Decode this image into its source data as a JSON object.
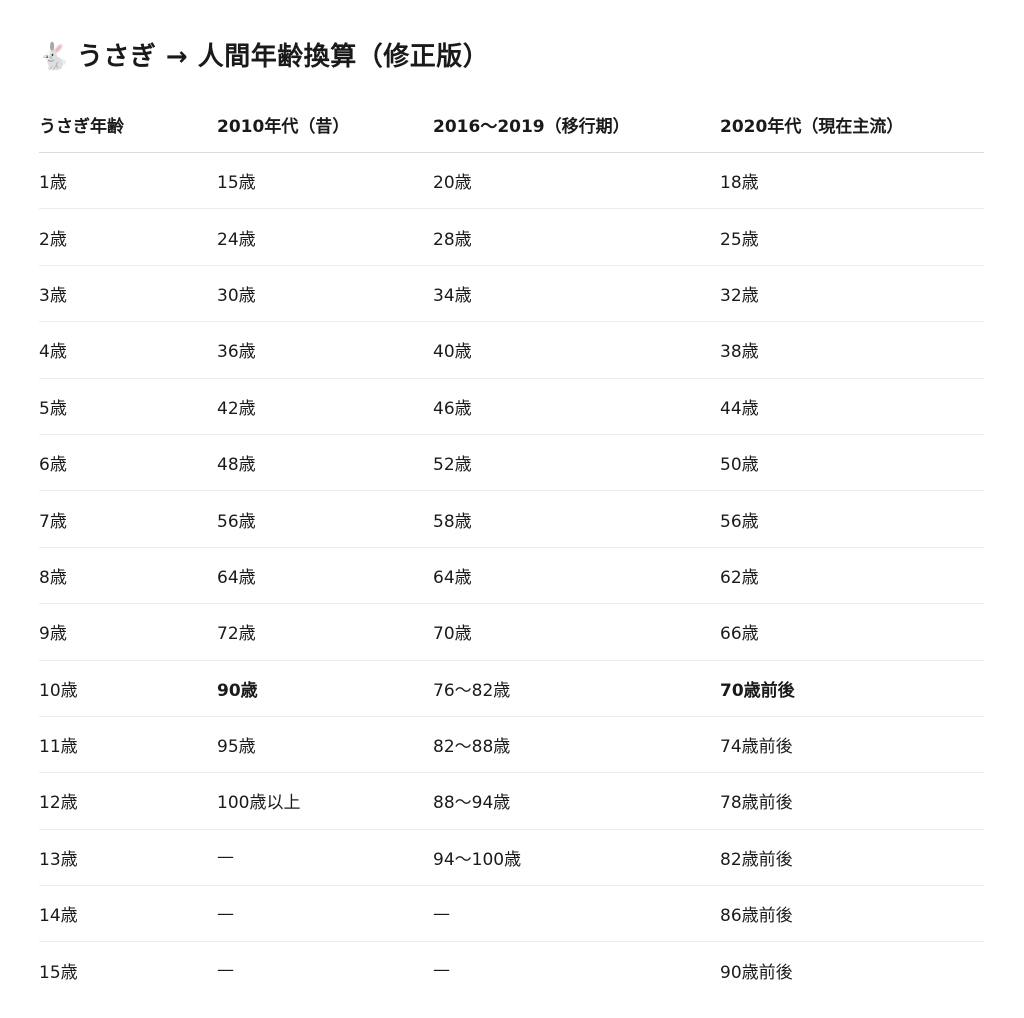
{
  "title": {
    "emoji": "🐇",
    "text": "うさぎ → 人間年齢換算（修正版）"
  },
  "table": {
    "headers": [
      "うさぎ年齢",
      "2010年代（昔）",
      "2016〜2019（移行期）",
      "2020年代（現在主流）"
    ],
    "rows": [
      {
        "cells": [
          "1歳",
          "15歳",
          "20歳",
          "18歳"
        ]
      },
      {
        "cells": [
          "2歳",
          "24歳",
          "28歳",
          "25歳"
        ]
      },
      {
        "cells": [
          "3歳",
          "30歳",
          "34歳",
          "32歳"
        ]
      },
      {
        "cells": [
          "4歳",
          "36歳",
          "40歳",
          "38歳"
        ]
      },
      {
        "cells": [
          "5歳",
          "42歳",
          "46歳",
          "44歳"
        ]
      },
      {
        "cells": [
          "6歳",
          "48歳",
          "52歳",
          "50歳"
        ]
      },
      {
        "cells": [
          "7歳",
          "56歳",
          "58歳",
          "56歳"
        ]
      },
      {
        "cells": [
          "8歳",
          "64歳",
          "64歳",
          "62歳"
        ]
      },
      {
        "cells": [
          "9歳",
          "72歳",
          "70歳",
          "66歳"
        ]
      },
      {
        "cells": [
          "10歳",
          "90歳",
          "76〜82歳",
          "70歳前後"
        ],
        "bold": [
          1,
          3
        ]
      },
      {
        "cells": [
          "11歳",
          "95歳",
          "82〜88歳",
          "74歳前後"
        ]
      },
      {
        "cells": [
          "12歳",
          "100歳以上",
          "88〜94歳",
          "78歳前後"
        ]
      },
      {
        "cells": [
          "13歳",
          "—",
          "94〜100歳",
          "82歳前後"
        ]
      },
      {
        "cells": [
          "14歳",
          "—",
          "—",
          "86歳前後"
        ]
      },
      {
        "cells": [
          "15歳",
          "—",
          "—",
          "90歳前後"
        ]
      }
    ]
  }
}
